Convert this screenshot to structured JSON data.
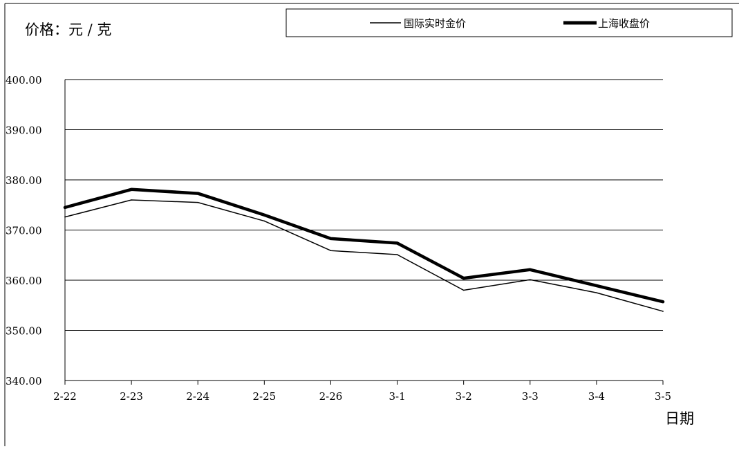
{
  "chart_data": {
    "type": "line",
    "ylabel": "价格：元 / 克",
    "xlabel": "日期",
    "categories": [
      "2-22",
      "2-23",
      "2-24",
      "2-25",
      "2-26",
      "3-1",
      "3-2",
      "3-3",
      "3-4",
      "3-5"
    ],
    "ylim": [
      340,
      400
    ],
    "yticks": [
      "340.00",
      "350.00",
      "360.00",
      "370.00",
      "380.00",
      "390.00",
      "400.00"
    ],
    "grid": true,
    "legend_position": "top",
    "series": [
      {
        "name": "国际实时金价",
        "color": "#000000",
        "line_style": "thin",
        "values": [
          372.6,
          376.0,
          375.5,
          371.8,
          365.9,
          365.1,
          358.0,
          360.1,
          357.5,
          353.8
        ]
      },
      {
        "name": "上海收盘价",
        "color": "#000000",
        "line_style": "thick",
        "values": [
          374.5,
          378.1,
          377.3,
          373.0,
          368.3,
          367.4,
          360.4,
          362.1,
          358.9,
          355.7
        ]
      }
    ]
  }
}
